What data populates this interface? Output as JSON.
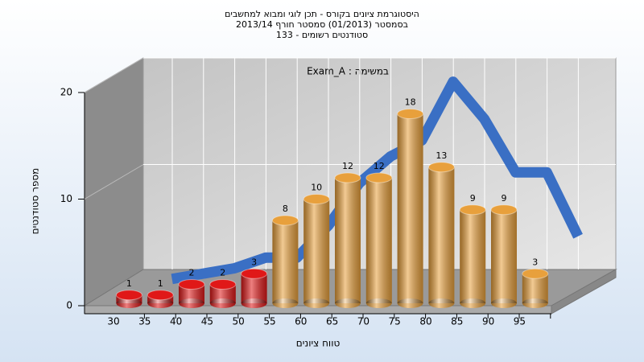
{
  "chart_data": {
    "type": "bar",
    "title": "היסטוגרמת ציונים בקורס - תכן לוגי ומבוא למחשבים",
    "subtitle": [
      "בסמסטר  (01/2013)  סמסטר חורף 2013/14",
      "סטודנטים רשומים - 133"
    ],
    "legend_text": "Exam_A : במשימה",
    "x_label": "טווח ציונים",
    "y_label": "מספר סטודנטים",
    "categories": [
      "30",
      "35",
      "40",
      "45",
      "50",
      "55",
      "60",
      "65",
      "70",
      "75",
      "80",
      "85",
      "90",
      "95"
    ],
    "values": [
      1,
      1,
      2,
      2,
      3,
      8,
      10,
      12,
      12,
      18,
      13,
      9,
      9,
      3
    ],
    "colors": [
      "#e01818",
      "#e01818",
      "#e01818",
      "#e01818",
      "#e01818",
      "#e8a03c",
      "#e8a03c",
      "#e8a03c",
      "#e8a03c",
      "#e8a03c",
      "#e8a03c",
      "#e8a03c",
      "#e8a03c",
      "#e8a03c"
    ],
    "line_values": [
      1,
      1.5,
      2,
      3,
      3,
      6,
      10,
      12.5,
      14,
      19.5,
      16,
      11,
      11,
      5
    ],
    "line_color": "#3a6fc4",
    "ylim": [
      0,
      20
    ],
    "yticks": [
      0,
      10,
      20
    ],
    "grid": true
  }
}
